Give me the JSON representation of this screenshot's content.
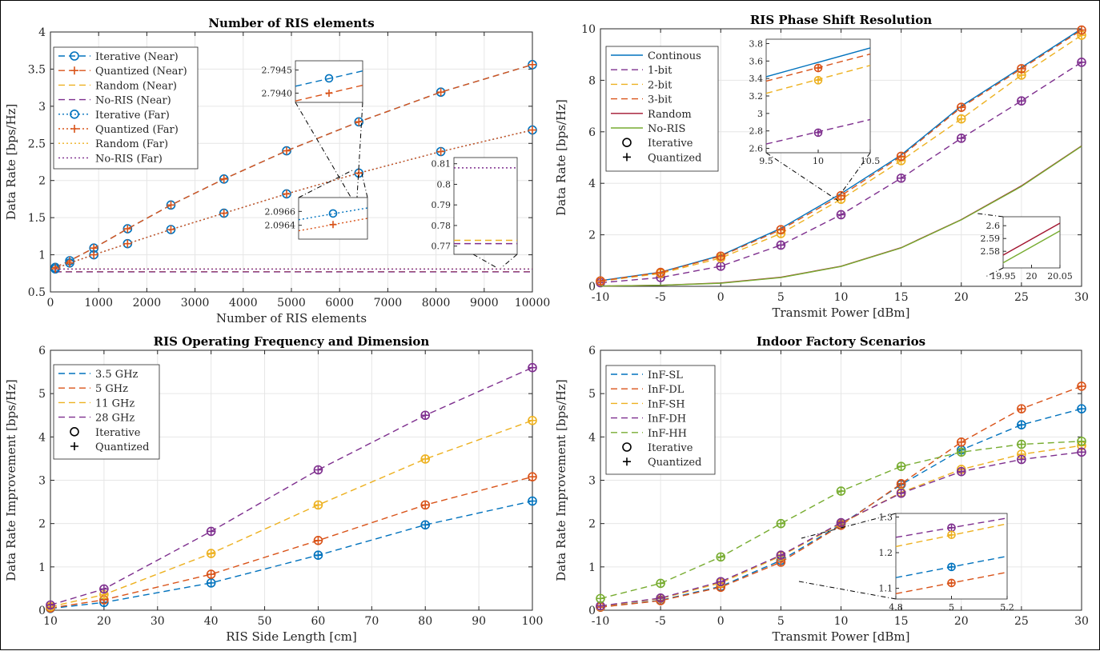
{
  "chart_data": [
    {
      "id": "p1",
      "type": "line",
      "title": "Number of RIS elements",
      "xlabel": "Number of RIS elements",
      "ylabel": "Data Rate [bps/Hz]",
      "xlim": [
        0,
        10000
      ],
      "ylim": [
        0.5,
        4
      ],
      "xticks": [
        0,
        1000,
        2000,
        3000,
        4000,
        5000,
        6000,
        7000,
        8000,
        9000,
        10000
      ],
      "yticks": [
        0.5,
        1,
        1.5,
        2,
        2.5,
        3,
        3.5,
        4
      ],
      "ytick_labels": [
        "0.5",
        "1",
        "1.5",
        "2",
        "2.5",
        "3",
        "3.5",
        "4"
      ],
      "legend_position": "top-left",
      "x": [
        100,
        400,
        900,
        1600,
        2500,
        3600,
        4900,
        6400,
        8100,
        10000
      ],
      "series": [
        {
          "name": "Iterative (Near)",
          "color": "#0072BD",
          "dash": "8,5",
          "marker": "o",
          "values": [
            0.83,
            0.92,
            1.09,
            1.35,
            1.67,
            2.02,
            2.4,
            2.79,
            3.19,
            3.56
          ]
        },
        {
          "name": "Quantized (Near)",
          "color": "#D95319",
          "dash": "8,5",
          "marker": "+",
          "values": [
            0.83,
            0.92,
            1.09,
            1.35,
            1.67,
            2.02,
            2.4,
            2.79,
            3.19,
            3.56
          ]
        },
        {
          "name": "Random (Near)",
          "color": "#EDB120",
          "dash": "8,5",
          "marker": "",
          "values": [
            0.772,
            0.772,
            0.772,
            0.772,
            0.772,
            0.772,
            0.772,
            0.772,
            0.772,
            0.772
          ]
        },
        {
          "name": "No-RIS (Near)",
          "color": "#7E2F8E",
          "dash": "8,5",
          "marker": "",
          "values": [
            0.77,
            0.77,
            0.77,
            0.77,
            0.77,
            0.77,
            0.77,
            0.77,
            0.77,
            0.77
          ]
        },
        {
          "name": "Iterative (Far)",
          "color": "#0072BD",
          "dash": "2,3",
          "marker": "o",
          "values": [
            0.81,
            0.89,
            1.0,
            1.15,
            1.34,
            1.56,
            1.82,
            2.1,
            2.39,
            2.68
          ]
        },
        {
          "name": "Quantized (Far)",
          "color": "#D95319",
          "dash": "2,3",
          "marker": "+",
          "values": [
            0.81,
            0.89,
            1.0,
            1.15,
            1.34,
            1.56,
            1.82,
            2.1,
            2.39,
            2.68
          ]
        },
        {
          "name": "Random (Far)",
          "color": "#EDB120",
          "dash": "2,3",
          "marker": "",
          "values": [
            0.809,
            0.809,
            0.809,
            0.809,
            0.809,
            0.809,
            0.809,
            0.809,
            0.809,
            0.809
          ]
        },
        {
          "name": "No-RIS (Far)",
          "color": "#7E2F8E",
          "dash": "2,3",
          "marker": "",
          "values": [
            0.808,
            0.808,
            0.808,
            0.808,
            0.808,
            0.808,
            0.808,
            0.808,
            0.808,
            0.808
          ]
        }
      ],
      "insets": [
        {
          "yticks": [
            "2.7940",
            "2.7945"
          ],
          "xticks": [],
          "series": [
            {
              "color": "#0072BD",
              "dash": "8,5",
              "marker": "o",
              "x": [
                0,
                1
              ],
              "y": [
                2.79415,
                2.79448
              ],
              "marker_at": [
                0.5,
                2.79432
              ]
            },
            {
              "color": "#D95319",
              "dash": "8,5",
              "marker": "+",
              "x": [
                0,
                1
              ],
              "y": [
                2.79383,
                2.79417
              ],
              "marker_at": [
                0.5,
                2.794
              ]
            }
          ]
        },
        {
          "yticks": [
            "2.0964",
            "2.0966"
          ],
          "xticks": [],
          "series": [
            {
              "color": "#0072BD",
              "dash": "2,3",
              "marker": "o",
              "x": [
                0,
                1
              ],
              "y": [
                2.09648,
                2.09665
              ],
              "marker_at": [
                0.5,
                2.09657
              ]
            },
            {
              "color": "#D95319",
              "dash": "2,3",
              "marker": "+",
              "x": [
                0,
                1
              ],
              "y": [
                2.09632,
                2.0965
              ],
              "marker_at": [
                0.5,
                2.09641
              ]
            }
          ]
        },
        {
          "yticks": [
            "0.77",
            "0.78",
            "0.79",
            "0.8",
            "0.81"
          ],
          "xticks": [],
          "series": [
            {
              "color": "#7E2F8E",
              "dash": "2,3",
              "x": [
                0,
                1
              ],
              "y": [
                0.808,
                0.808
              ]
            },
            {
              "color": "#EDB120",
              "dash": "8,5",
              "x": [
                0,
                1
              ],
              "y": [
                0.7728,
                0.7728
              ]
            },
            {
              "color": "#7E2F8E",
              "dash": "8,5",
              "x": [
                0,
                1
              ],
              "y": [
                0.7712,
                0.7712
              ]
            }
          ]
        }
      ]
    },
    {
      "id": "p2",
      "type": "line",
      "title": "RIS Phase Shift Resolution",
      "xlabel": "Transmit Power [dBm]",
      "ylabel": "Data Rate [bps/Hz]",
      "xlim": [
        -10,
        30
      ],
      "ylim": [
        0,
        10
      ],
      "xticks": [
        -10,
        -5,
        0,
        5,
        10,
        15,
        20,
        25,
        30
      ],
      "yticks": [
        0,
        2,
        4,
        6,
        8,
        10
      ],
      "legend_position": "top-left",
      "x": [
        -10,
        -5,
        0,
        5,
        10,
        15,
        20,
        25,
        30
      ],
      "series": [
        {
          "name": "Continous",
          "color": "#0072BD",
          "dash": "",
          "marker": "",
          "values": [
            0.22,
            0.55,
            1.2,
            2.25,
            3.6,
            5.1,
            7.0,
            8.5,
            10.0
          ]
        },
        {
          "name": "1-bit",
          "color": "#7E2F8E",
          "dash": "8,5",
          "marker": "o+",
          "values": [
            0.14,
            0.34,
            0.78,
            1.6,
            2.78,
            4.2,
            5.75,
            7.2,
            8.7
          ]
        },
        {
          "name": "2-bit",
          "color": "#EDB120",
          "dash": "8,5",
          "marker": "o+",
          "values": [
            0.2,
            0.5,
            1.1,
            2.05,
            3.38,
            4.88,
            6.5,
            8.2,
            9.75
          ]
        },
        {
          "name": "3-bit",
          "color": "#D95319",
          "dash": "8,5",
          "marker": "o+",
          "values": [
            0.21,
            0.54,
            1.17,
            2.2,
            3.52,
            5.05,
            6.95,
            8.45,
            9.95
          ]
        },
        {
          "name": "Random",
          "color": "#A2142F",
          "dash": "",
          "marker": "",
          "values": [
            0.01,
            0.04,
            0.13,
            0.35,
            0.78,
            1.5,
            2.59,
            3.9,
            5.45
          ]
        },
        {
          "name": "No-RIS",
          "color": "#77AC30",
          "dash": "",
          "marker": "",
          "values": [
            0.01,
            0.04,
            0.12,
            0.34,
            0.77,
            1.49,
            2.58,
            3.88,
            5.44
          ]
        },
        {
          "name": "Iterative",
          "color": "#000000",
          "dash": "",
          "marker": "o",
          "legend_only": true
        },
        {
          "name": "Quantized",
          "color": "#000000",
          "dash": "",
          "marker": "+",
          "legend_only": true
        }
      ],
      "insets": [
        {
          "yticks": [
            "2.6",
            "2.8",
            "3",
            "3.2",
            "3.4",
            "3.6",
            "3.8"
          ],
          "xticks": [
            "9.5",
            "10",
            "10.5"
          ],
          "series": [
            {
              "color": "#0072BD",
              "dash": "",
              "x": [
                9.5,
                10.5
              ],
              "y": [
                3.42,
                3.75
              ]
            },
            {
              "color": "#D95319",
              "dash": "8,5",
              "x": [
                9.5,
                10.5
              ],
              "y": [
                3.37,
                3.68
              ],
              "marker_at": [
                10,
                3.52
              ]
            },
            {
              "color": "#EDB120",
              "dash": "8,5",
              "x": [
                9.5,
                10.5
              ],
              "y": [
                3.23,
                3.55
              ],
              "marker_at": [
                10,
                3.38
              ]
            },
            {
              "color": "#7E2F8E",
              "dash": "8,5",
              "x": [
                9.5,
                10.5
              ],
              "y": [
                2.65,
                2.93
              ],
              "marker_at": [
                10,
                2.78
              ]
            }
          ]
        },
        {
          "yticks": [
            "2.58",
            "2.59",
            "2.6"
          ],
          "xticks": [
            "19.95",
            "20",
            "20.05"
          ],
          "series": [
            {
              "color": "#A2142F",
              "dash": "",
              "x": [
                19.95,
                20.05
              ],
              "y": [
                2.577,
                2.602
              ]
            },
            {
              "color": "#77AC30",
              "dash": "",
              "x": [
                19.95,
                20.05
              ],
              "y": [
                2.571,
                2.596
              ]
            }
          ]
        }
      ]
    },
    {
      "id": "p3",
      "type": "line",
      "title": "RIS Operating Frequency and Dimension",
      "xlabel": "RIS Side Length [cm]",
      "ylabel": "Data Rate Improvement [bps/Hz]",
      "xlim": [
        10,
        100
      ],
      "ylim": [
        0,
        6
      ],
      "xticks": [
        10,
        20,
        30,
        40,
        50,
        60,
        70,
        80,
        90,
        100
      ],
      "yticks": [
        0,
        1,
        2,
        3,
        4,
        5,
        6
      ],
      "legend_position": "top-left",
      "x": [
        10,
        20,
        40,
        60,
        80,
        100
      ],
      "series": [
        {
          "name": "3.5 GHz",
          "color": "#0072BD",
          "dash": "8,5",
          "marker": "o+",
          "values": [
            0.04,
            0.18,
            0.63,
            1.27,
            1.97,
            2.52
          ]
        },
        {
          "name": "5 GHz",
          "color": "#D95319",
          "dash": "8,5",
          "marker": "o+",
          "values": [
            0.05,
            0.24,
            0.83,
            1.61,
            2.43,
            3.08
          ]
        },
        {
          "name": "11 GHz",
          "color": "#EDB120",
          "dash": "8,5",
          "marker": "o+",
          "values": [
            0.08,
            0.36,
            1.31,
            2.43,
            3.49,
            4.38
          ]
        },
        {
          "name": "28 GHz",
          "color": "#7E2F8E",
          "dash": "8,5",
          "marker": "o+",
          "values": [
            0.12,
            0.49,
            1.82,
            3.24,
            4.5,
            5.6
          ]
        },
        {
          "name": "Iterative",
          "color": "#000000",
          "dash": "",
          "marker": "o",
          "legend_only": true
        },
        {
          "name": "Quantized",
          "color": "#000000",
          "dash": "",
          "marker": "+",
          "legend_only": true
        }
      ]
    },
    {
      "id": "p4",
      "type": "line",
      "title": "Indoor Factory Scenarios",
      "xlabel": "Transmit Power [dBm]",
      "ylabel": "Data Rate Improvement [bps/Hz]",
      "xlim": [
        -10,
        30
      ],
      "ylim": [
        0,
        6
      ],
      "xticks": [
        -10,
        -5,
        0,
        5,
        10,
        15,
        20,
        25,
        30
      ],
      "yticks": [
        0,
        1,
        2,
        3,
        4,
        5,
        6
      ],
      "legend_position": "top-left",
      "x": [
        -10,
        -5,
        0,
        5,
        10,
        15,
        20,
        25,
        30
      ],
      "series": [
        {
          "name": "InF-SL",
          "color": "#0072BD",
          "dash": "8,5",
          "marker": "o+",
          "values": [
            0.07,
            0.23,
            0.55,
            1.15,
            1.98,
            2.9,
            3.7,
            4.28,
            4.65
          ]
        },
        {
          "name": "InF-DL",
          "color": "#D95319",
          "dash": "8,5",
          "marker": "o+",
          "values": [
            0.07,
            0.22,
            0.53,
            1.11,
            1.96,
            2.92,
            3.88,
            4.65,
            5.17
          ]
        },
        {
          "name": "InF-SH",
          "color": "#EDB120",
          "dash": "8,5",
          "marker": "o+",
          "values": [
            0.09,
            0.27,
            0.63,
            1.25,
            2.0,
            2.72,
            3.25,
            3.6,
            3.8
          ]
        },
        {
          "name": "InF-DH",
          "color": "#7E2F8E",
          "dash": "8,5",
          "marker": "o+",
          "values": [
            0.1,
            0.28,
            0.66,
            1.27,
            2.02,
            2.7,
            3.2,
            3.48,
            3.65
          ]
        },
        {
          "name": "InF-HH",
          "color": "#77AC30",
          "dash": "8,5",
          "marker": "o+",
          "values": [
            0.27,
            0.62,
            1.23,
            2.0,
            2.75,
            3.32,
            3.65,
            3.83,
            3.9
          ]
        },
        {
          "name": "Iterative",
          "color": "#000000",
          "dash": "",
          "marker": "o",
          "legend_only": true
        },
        {
          "name": "Quantized",
          "color": "#000000",
          "dash": "",
          "marker": "+",
          "legend_only": true
        }
      ],
      "insets": [
        {
          "yticks": [
            "1.1",
            "1.2",
            "1.3"
          ],
          "xticks": [
            "4.8",
            "5",
            "5.2"
          ],
          "series": [
            {
              "color": "#7E2F8E",
              "dash": "8,5",
              "x": [
                4.8,
                5.2
              ],
              "y": [
                1.243,
                1.297
              ],
              "marker_at": [
                5,
                1.27
              ]
            },
            {
              "color": "#EDB120",
              "dash": "8,5",
              "x": [
                4.8,
                5.2
              ],
              "y": [
                1.217,
                1.281
              ],
              "marker_at": [
                5,
                1.25
              ]
            },
            {
              "color": "#0072BD",
              "dash": "8,5",
              "x": [
                4.8,
                5.2
              ],
              "y": [
                1.13,
                1.19
              ],
              "marker_at": [
                5,
                1.16
              ]
            },
            {
              "color": "#D95319",
              "dash": "8,5",
              "x": [
                4.8,
                5.2
              ],
              "y": [
                1.085,
                1.145
              ],
              "marker_at": [
                5,
                1.115
              ]
            }
          ]
        }
      ]
    }
  ]
}
